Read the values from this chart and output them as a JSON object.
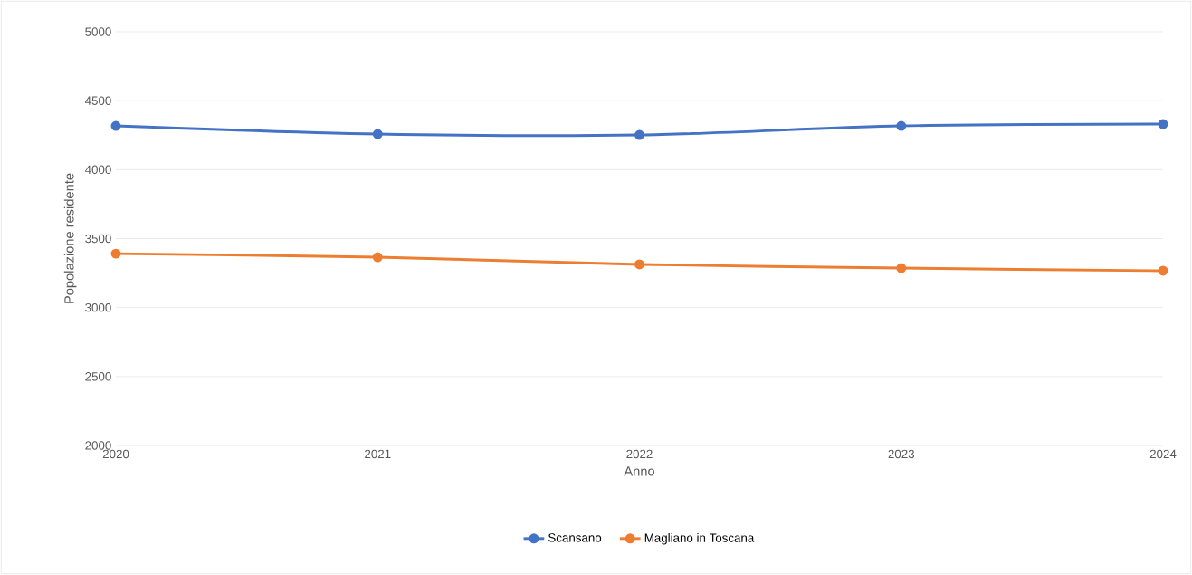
{
  "chart_data": {
    "type": "line",
    "xlabel": "Anno",
    "ylabel": "Popolazione residente",
    "x": [
      2020,
      2021,
      2022,
      2023,
      2024
    ],
    "series": [
      {
        "name": "Scansano",
        "color": "#4472c4",
        "values": [
          4317,
          4258,
          4251,
          4317,
          4330
        ]
      },
      {
        "name": "Magliano in Toscana",
        "color": "#ed7d31",
        "values": [
          3391,
          3365,
          3313,
          3286,
          3267
        ]
      }
    ],
    "xlim": [
      2020,
      2024
    ],
    "xticks": [
      2020,
      2021,
      2022,
      2023,
      2024
    ],
    "ylim": [
      2000,
      5000
    ],
    "yticks": [
      2000,
      2500,
      3000,
      3500,
      4000,
      4500,
      5000
    ],
    "grid": "y",
    "legend": "bottom",
    "marker": "circle",
    "line_style": "solid"
  }
}
